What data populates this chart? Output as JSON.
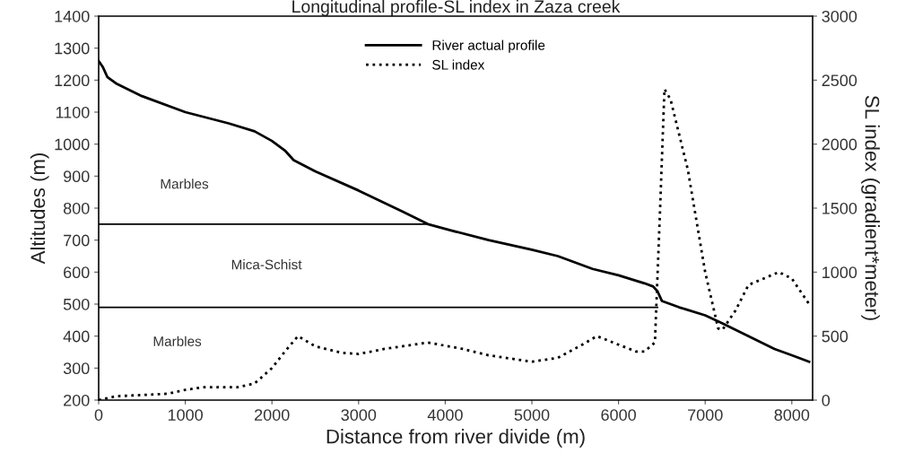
{
  "chart_data": {
    "type": "line",
    "title": "Longitudinal profile-SL index in Zaza creek",
    "xlabel": "Distance from river divide (m)",
    "ylabel": "Altitudes (m)",
    "y2label": "SL index (gradient*meter)",
    "series": [
      {
        "name": "River actual profile",
        "color": "#000000",
        "line_style": "solid",
        "x": [
          0,
          50,
          100,
          200,
          500,
          1000,
          1500,
          1800,
          2000,
          2150,
          2250,
          2500,
          3000,
          3500,
          3800,
          4000,
          4500,
          5000,
          5300,
          5700,
          6000,
          6300,
          6400,
          6450,
          6500,
          6700,
          7000,
          7200,
          7500,
          7800,
          8000,
          8200
        ],
        "values": [
          1260,
          1240,
          1210,
          1190,
          1150,
          1100,
          1065,
          1040,
          1010,
          980,
          950,
          915,
          855,
          790,
          750,
          735,
          700,
          670,
          650,
          610,
          590,
          565,
          555,
          540,
          510,
          490,
          465,
          440,
          400,
          360,
          340,
          320
        ]
      },
      {
        "name": "SL index",
        "color": "#000000",
        "line_style": "dotted",
        "axis": "y2",
        "x": [
          0,
          200,
          800,
          1000,
          1200,
          1600,
          1800,
          2000,
          2150,
          2300,
          2500,
          2800,
          3000,
          3300,
          3800,
          4200,
          4500,
          5000,
          5300,
          5600,
          5750,
          5900,
          6200,
          6300,
          6420,
          6480,
          6530,
          6600,
          6800,
          7000,
          7150,
          7200,
          7350,
          7500,
          7850,
          8000,
          8200
        ],
        "values": [
          0,
          30,
          50,
          80,
          100,
          100,
          130,
          250,
          380,
          500,
          420,
          370,
          360,
          400,
          450,
          400,
          350,
          300,
          330,
          440,
          500,
          460,
          380,
          380,
          450,
          1500,
          2430,
          2350,
          1800,
          1000,
          560,
          550,
          700,
          900,
          1000,
          950,
          750
        ]
      },
      {
        "color": "#000000",
        "line_style": "solid",
        "x": [
          0,
          3800
        ],
        "values": [
          750,
          750
        ]
      },
      {
        "color": "#000000",
        "line_style": "solid",
        "x": [
          0,
          6450
        ],
        "values": [
          490,
          490
        ]
      }
    ],
    "annotations": [
      "Marbles",
      "Mica-Schist",
      "Marbles"
    ],
    "xlim": [
      0,
      8240
    ],
    "xticks": [
      0,
      1000,
      2000,
      3000,
      4000,
      5000,
      6000,
      7000,
      8000
    ],
    "ylim": [
      200,
      1400
    ],
    "yticks": [
      200,
      300,
      400,
      500,
      600,
      700,
      800,
      900,
      1000,
      1100,
      1200,
      1300,
      1400
    ],
    "y2lim": [
      0,
      3000
    ],
    "y2ticks": [
      0,
      500,
      1000,
      1500,
      2000,
      2500,
      3000
    ],
    "legend": "top center",
    "grid": false
  }
}
